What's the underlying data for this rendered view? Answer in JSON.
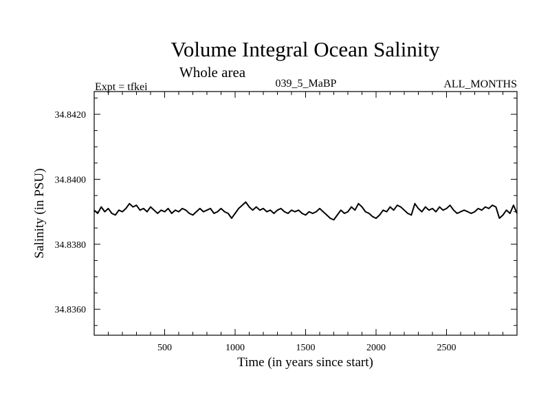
{
  "chart_data": {
    "type": "line",
    "title": "Volume Integral Ocean Salinity",
    "subtitle": "Whole area",
    "header_left": "Expt = tfkei",
    "header_center": "039_5_MaBP",
    "header_right": "ALL_MONTHS",
    "xlabel": "Time (in years since start)",
    "ylabel": "Salinity (in PSU)",
    "xlim": [
      0,
      3000
    ],
    "ylim": [
      34.8352,
      34.8427
    ],
    "x_ticks": [
      500,
      1000,
      1500,
      2000,
      2500
    ],
    "x_tick_labels": [
      "500",
      "1000",
      "1500",
      "2000",
      "2500"
    ],
    "y_ticks": [
      34.836,
      34.838,
      34.84,
      34.842
    ],
    "y_tick_labels": [
      "34.8360",
      "34.8380",
      "34.8400",
      "34.8420"
    ],
    "grid": false,
    "legend": "none",
    "line_color": "#000000",
    "series": [
      {
        "x": [
          0,
          25,
          50,
          75,
          100,
          125,
          150,
          175,
          200,
          225,
          250,
          275,
          300,
          325,
          350,
          375,
          400,
          425,
          450,
          475,
          500,
          525,
          550,
          575,
          600,
          625,
          650,
          675,
          700,
          725,
          750,
          775,
          800,
          825,
          850,
          875,
          900,
          925,
          950,
          975,
          1000,
          1025,
          1050,
          1075,
          1100,
          1125,
          1150,
          1175,
          1200,
          1225,
          1250,
          1275,
          1300,
          1325,
          1350,
          1375,
          1400,
          1425,
          1450,
          1475,
          1500,
          1525,
          1550,
          1575,
          1600,
          1625,
          1650,
          1675,
          1700,
          1725,
          1750,
          1775,
          1800,
          1825,
          1850,
          1875,
          1900,
          1925,
          1950,
          1975,
          2000,
          2025,
          2050,
          2075,
          2100,
          2125,
          2150,
          2175,
          2200,
          2225,
          2250,
          2275,
          2300,
          2325,
          2350,
          2375,
          2400,
          2425,
          2450,
          2475,
          2500,
          2525,
          2550,
          2575,
          2600,
          2625,
          2650,
          2675,
          2700,
          2725,
          2750,
          2775,
          2800,
          2825,
          2850,
          2875,
          2900,
          2925,
          2950,
          2975,
          3000
        ],
        "values": [
          34.83905,
          34.83895,
          34.83915,
          34.839,
          34.8391,
          34.83895,
          34.8389,
          34.83905,
          34.839,
          34.8391,
          34.83925,
          34.83915,
          34.8392,
          34.83905,
          34.8391,
          34.839,
          34.83915,
          34.83905,
          34.83895,
          34.83905,
          34.839,
          34.8391,
          34.83895,
          34.83905,
          34.839,
          34.8391,
          34.83905,
          34.83895,
          34.8389,
          34.839,
          34.8391,
          34.839,
          34.83905,
          34.8391,
          34.83895,
          34.839,
          34.8391,
          34.839,
          34.83895,
          34.8388,
          34.83895,
          34.8391,
          34.8392,
          34.8393,
          34.83915,
          34.83905,
          34.83915,
          34.83905,
          34.8391,
          34.839,
          34.83905,
          34.83895,
          34.83905,
          34.8391,
          34.839,
          34.83895,
          34.83905,
          34.839,
          34.83905,
          34.83895,
          34.8389,
          34.839,
          34.83895,
          34.839,
          34.8391,
          34.839,
          34.8389,
          34.8388,
          34.83875,
          34.8389,
          34.83905,
          34.83895,
          34.839,
          34.83915,
          34.83905,
          34.83925,
          34.83915,
          34.839,
          34.83895,
          34.83885,
          34.8388,
          34.8389,
          34.83905,
          34.839,
          34.83915,
          34.83905,
          34.8392,
          34.83915,
          34.83905,
          34.83895,
          34.8389,
          34.83925,
          34.8391,
          34.839,
          34.83915,
          34.83905,
          34.8391,
          34.839,
          34.83915,
          34.83905,
          34.8391,
          34.8392,
          34.83905,
          34.83895,
          34.839,
          34.83905,
          34.839,
          34.83895,
          34.839,
          34.8391,
          34.83905,
          34.83915,
          34.8391,
          34.8392,
          34.83915,
          34.8388,
          34.8389,
          34.83905,
          34.83895,
          34.8392,
          34.83895
        ]
      }
    ]
  }
}
